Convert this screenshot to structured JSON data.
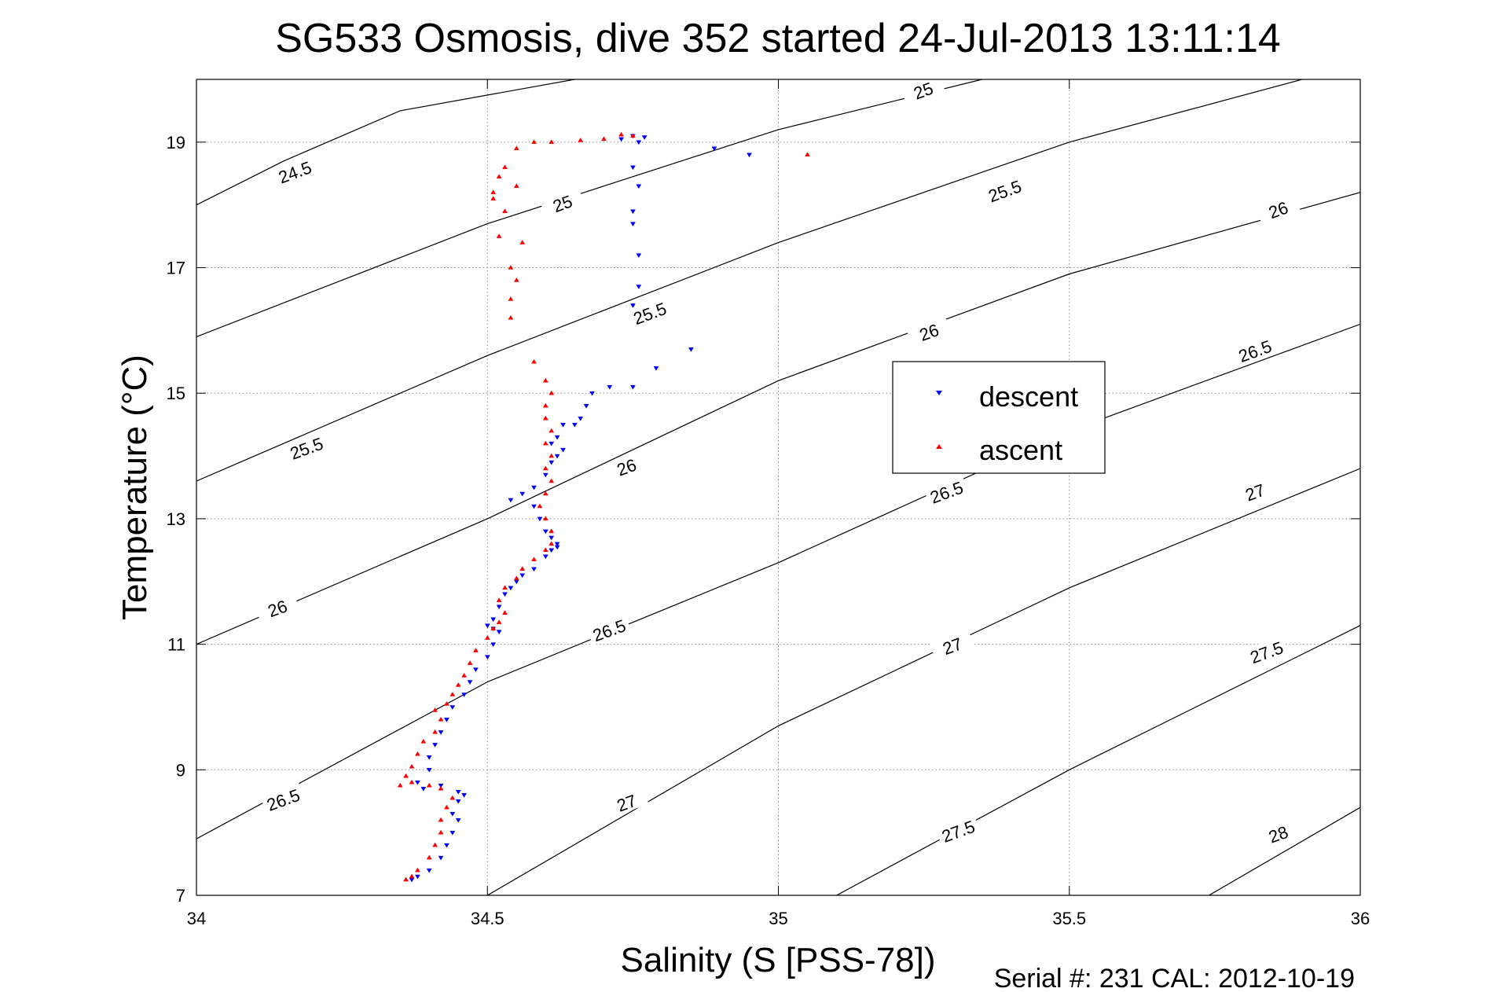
{
  "chart_data": {
    "type": "scatter",
    "title": "SG533 Osmosis, dive 352 started 24-Jul-2013 13:11:14",
    "xlabel": "Salinity (S [PSS-78])",
    "ylabel": "Temperature (°C)",
    "footer": "Serial #: 231  CAL: 2012-10-19",
    "xlim": [
      34,
      36
    ],
    "ylim": [
      7,
      20
    ],
    "x_ticks": [
      34,
      34.5,
      35,
      35.5,
      36
    ],
    "x_tick_labels": [
      "34",
      "34.5",
      "35",
      "35.5",
      "36"
    ],
    "y_ticks": [
      7,
      9,
      11,
      13,
      15,
      17,
      19
    ],
    "y_tick_labels": [
      "7",
      "9",
      "11",
      "13",
      "15",
      "17",
      "19"
    ],
    "grid": true,
    "legend": {
      "position": "right-center",
      "entries": [
        "descent",
        "ascent"
      ]
    },
    "colors": {
      "descent": "#0000ff",
      "ascent": "#ff0000",
      "contour": "#000000"
    },
    "contours": {
      "note_unit": "sigma-theta density isopycnals",
      "lines": [
        {
          "label": "24.5",
          "points": [
            [
              34.0,
              18.0
            ],
            [
              34.15,
              18.7
            ],
            [
              34.35,
              19.5
            ],
            [
              34.65,
              20.0
            ]
          ]
        },
        {
          "label": "25",
          "points": [
            [
              34.0,
              15.9
            ],
            [
              34.5,
              17.7
            ],
            [
              35.0,
              19.2
            ],
            [
              35.35,
              20.0
            ]
          ]
        },
        {
          "label": "25.5",
          "points": [
            [
              34.0,
              13.6
            ],
            [
              34.5,
              15.6
            ],
            [
              35.0,
              17.4
            ],
            [
              35.5,
              19.0
            ],
            [
              35.9,
              20.0
            ]
          ]
        },
        {
          "label": "26",
          "points": [
            [
              34.0,
              11.0
            ],
            [
              34.5,
              13.0
            ],
            [
              35.0,
              15.2
            ],
            [
              35.5,
              16.9
            ],
            [
              36.0,
              18.2
            ]
          ]
        },
        {
          "label": "26.5",
          "points": [
            [
              34.0,
              7.9
            ],
            [
              34.5,
              10.4
            ],
            [
              35.0,
              12.3
            ],
            [
              35.5,
              14.4
            ],
            [
              36.0,
              16.1
            ]
          ]
        },
        {
          "label": "27",
          "points": [
            [
              34.5,
              7.0
            ],
            [
              35.0,
              9.7
            ],
            [
              35.5,
              11.9
            ],
            [
              36.0,
              13.8
            ]
          ]
        },
        {
          "label": "27.5",
          "points": [
            [
              35.1,
              7.0
            ],
            [
              35.5,
              9.0
            ],
            [
              36.0,
              11.3
            ]
          ]
        },
        {
          "label": "28",
          "points": [
            [
              35.74,
              7.0
            ],
            [
              36.0,
              8.4
            ]
          ]
        }
      ],
      "labels": [
        {
          "text": "24.5",
          "at": [
            34.17,
            18.5
          ]
        },
        {
          "text": "25",
          "at": [
            34.63,
            18.0
          ]
        },
        {
          "text": "25",
          "at": [
            35.25,
            19.8
          ]
        },
        {
          "text": "25.5",
          "at": [
            34.19,
            14.1
          ]
        },
        {
          "text": "25.5",
          "at": [
            34.78,
            16.25
          ]
        },
        {
          "text": "25.5",
          "at": [
            35.39,
            18.2
          ]
        },
        {
          "text": "26",
          "at": [
            34.14,
            11.55
          ]
        },
        {
          "text": "26",
          "at": [
            34.74,
            13.8
          ]
        },
        {
          "text": "26",
          "at": [
            35.26,
            15.95
          ]
        },
        {
          "text": "26",
          "at": [
            35.86,
            17.9
          ]
        },
        {
          "text": "26.5",
          "at": [
            34.15,
            8.5
          ]
        },
        {
          "text": "26.5",
          "at": [
            34.71,
            11.2
          ]
        },
        {
          "text": "26.5",
          "at": [
            35.29,
            13.4
          ]
        },
        {
          "text": "26.5",
          "at": [
            35.82,
            15.65
          ]
        },
        {
          "text": "27",
          "at": [
            34.74,
            8.45
          ]
        },
        {
          "text": "27",
          "at": [
            35.3,
            10.95
          ]
        },
        {
          "text": "27",
          "at": [
            35.82,
            13.4
          ]
        },
        {
          "text": "27.5",
          "at": [
            35.31,
            8.0
          ]
        },
        {
          "text": "27.5",
          "at": [
            35.84,
            10.85
          ]
        },
        {
          "text": "28",
          "at": [
            35.86,
            7.95
          ]
        }
      ]
    },
    "series": [
      {
        "name": "descent",
        "marker": "triangle-down",
        "points": [
          [
            34.75,
            19.1
          ],
          [
            34.77,
            19.08
          ],
          [
            34.73,
            19.05
          ],
          [
            34.76,
            19.0
          ],
          [
            34.89,
            18.9
          ],
          [
            34.95,
            18.8
          ],
          [
            34.75,
            18.6
          ],
          [
            34.76,
            18.3
          ],
          [
            34.75,
            17.9
          ],
          [
            34.75,
            17.7
          ],
          [
            34.76,
            17.2
          ],
          [
            34.76,
            16.7
          ],
          [
            34.75,
            16.4
          ],
          [
            34.85,
            15.7
          ],
          [
            34.79,
            15.4
          ],
          [
            34.75,
            15.1
          ],
          [
            34.71,
            15.1
          ],
          [
            34.68,
            15.0
          ],
          [
            34.67,
            14.8
          ],
          [
            34.66,
            14.6
          ],
          [
            34.65,
            14.5
          ],
          [
            34.63,
            14.5
          ],
          [
            34.62,
            14.3
          ],
          [
            34.61,
            14.2
          ],
          [
            34.63,
            14.1
          ],
          [
            34.62,
            14.0
          ],
          [
            34.61,
            13.9
          ],
          [
            34.6,
            13.7
          ],
          [
            34.58,
            13.5
          ],
          [
            34.56,
            13.4
          ],
          [
            34.54,
            13.3
          ],
          [
            34.58,
            13.2
          ],
          [
            34.59,
            13.0
          ],
          [
            34.6,
            12.8
          ],
          [
            34.61,
            12.7
          ],
          [
            34.62,
            12.6
          ],
          [
            34.62,
            12.55
          ],
          [
            34.61,
            12.5
          ],
          [
            34.6,
            12.4
          ],
          [
            34.58,
            12.2
          ],
          [
            34.56,
            12.1
          ],
          [
            34.55,
            12.0
          ],
          [
            34.54,
            11.9
          ],
          [
            34.53,
            11.8
          ],
          [
            34.52,
            11.6
          ],
          [
            34.51,
            11.4
          ],
          [
            34.5,
            11.3
          ],
          [
            34.51,
            11.25
          ],
          [
            34.52,
            11.2
          ],
          [
            34.51,
            11.0
          ],
          [
            34.5,
            10.8
          ],
          [
            34.48,
            10.6
          ],
          [
            34.47,
            10.4
          ],
          [
            34.46,
            10.2
          ],
          [
            34.44,
            10.0
          ],
          [
            34.43,
            9.8
          ],
          [
            34.42,
            9.6
          ],
          [
            34.41,
            9.4
          ],
          [
            34.4,
            9.2
          ],
          [
            34.4,
            9.0
          ],
          [
            34.38,
            8.8
          ],
          [
            34.39,
            8.7
          ],
          [
            34.42,
            8.75
          ],
          [
            34.45,
            8.65
          ],
          [
            34.46,
            8.6
          ],
          [
            34.45,
            8.5
          ],
          [
            34.44,
            8.3
          ],
          [
            34.45,
            8.2
          ],
          [
            34.44,
            8.0
          ],
          [
            34.43,
            7.8
          ],
          [
            34.42,
            7.6
          ],
          [
            34.4,
            7.4
          ],
          [
            34.38,
            7.3
          ],
          [
            34.37,
            7.25
          ]
        ]
      },
      {
        "name": "ascent",
        "marker": "triangle-up",
        "points": [
          [
            34.73,
            19.12
          ],
          [
            34.75,
            19.1
          ],
          [
            34.7,
            19.05
          ],
          [
            34.66,
            19.03
          ],
          [
            34.61,
            19.0
          ],
          [
            34.58,
            19.0
          ],
          [
            34.55,
            18.9
          ],
          [
            35.05,
            18.8
          ],
          [
            34.53,
            18.6
          ],
          [
            34.52,
            18.45
          ],
          [
            34.55,
            18.3
          ],
          [
            34.51,
            18.2
          ],
          [
            34.51,
            18.1
          ],
          [
            34.53,
            17.9
          ],
          [
            34.52,
            17.5
          ],
          [
            34.56,
            17.4
          ],
          [
            34.54,
            17.0
          ],
          [
            34.55,
            16.8
          ],
          [
            34.54,
            16.5
          ],
          [
            34.54,
            16.2
          ],
          [
            34.58,
            15.5
          ],
          [
            34.6,
            15.2
          ],
          [
            34.61,
            15.0
          ],
          [
            34.6,
            14.8
          ],
          [
            34.6,
            14.6
          ],
          [
            34.61,
            14.4
          ],
          [
            34.6,
            14.2
          ],
          [
            34.61,
            14.0
          ],
          [
            34.6,
            13.8
          ],
          [
            34.61,
            13.6
          ],
          [
            34.6,
            13.4
          ],
          [
            34.59,
            13.2
          ],
          [
            34.6,
            13.0
          ],
          [
            34.61,
            12.8
          ],
          [
            34.61,
            12.6
          ],
          [
            34.6,
            12.5
          ],
          [
            34.58,
            12.35
          ],
          [
            34.56,
            12.2
          ],
          [
            34.55,
            12.05
          ],
          [
            34.53,
            11.9
          ],
          [
            34.52,
            11.7
          ],
          [
            34.53,
            11.5
          ],
          [
            34.52,
            11.35
          ],
          [
            34.51,
            11.25
          ],
          [
            34.5,
            11.1
          ],
          [
            34.48,
            10.9
          ],
          [
            34.47,
            10.7
          ],
          [
            34.46,
            10.5
          ],
          [
            34.45,
            10.35
          ],
          [
            34.44,
            10.2
          ],
          [
            34.43,
            10.05
          ],
          [
            34.41,
            9.95
          ],
          [
            34.42,
            9.8
          ],
          [
            34.41,
            9.6
          ],
          [
            34.39,
            9.45
          ],
          [
            34.38,
            9.25
          ],
          [
            34.37,
            9.05
          ],
          [
            34.36,
            8.9
          ],
          [
            34.35,
            8.75
          ],
          [
            34.37,
            8.8
          ],
          [
            34.4,
            8.75
          ],
          [
            34.42,
            8.7
          ],
          [
            34.44,
            8.55
          ],
          [
            34.43,
            8.4
          ],
          [
            34.42,
            8.2
          ],
          [
            34.42,
            8.0
          ],
          [
            34.41,
            7.8
          ],
          [
            34.4,
            7.6
          ],
          [
            34.38,
            7.4
          ],
          [
            34.37,
            7.3
          ],
          [
            34.36,
            7.25
          ]
        ]
      }
    ]
  }
}
